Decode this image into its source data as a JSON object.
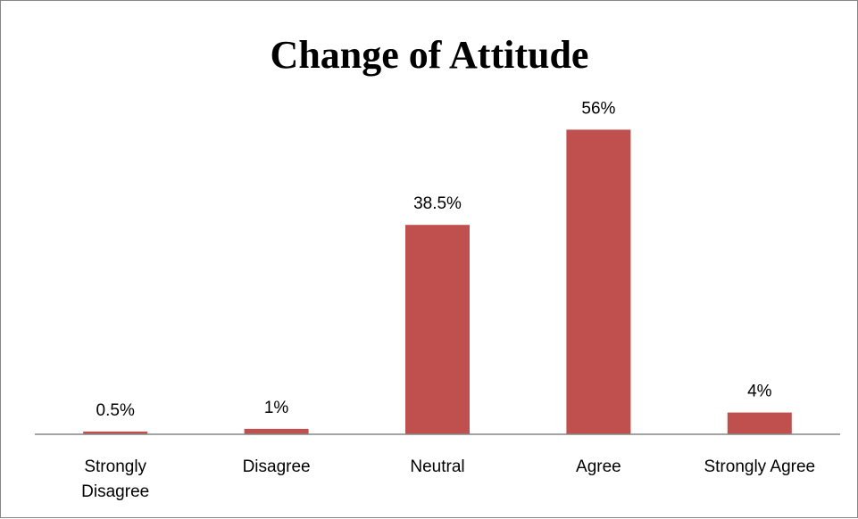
{
  "chart_data": {
    "type": "bar",
    "title": "Change of Attitude",
    "xlabel": "",
    "ylabel": "",
    "categories": [
      [
        "Strongly",
        "Disagree"
      ],
      [
        "Disagree"
      ],
      [
        "Neutral"
      ],
      [
        "Agree"
      ],
      [
        "Strongly Agree"
      ]
    ],
    "values": [
      0.5,
      1,
      38.5,
      56,
      4
    ],
    "data_labels": [
      "0.5%",
      "1%",
      "38.5%",
      "56%",
      "4%"
    ],
    "ylim": [
      0,
      60
    ],
    "grid": false,
    "legend": "none",
    "bar_color": "#C0504D",
    "axis_color": "#868686"
  }
}
